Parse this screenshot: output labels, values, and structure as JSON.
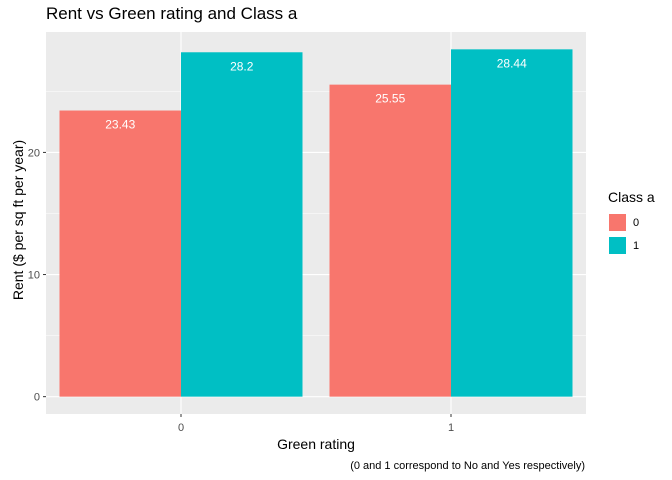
{
  "chart_data": {
    "type": "bar",
    "title": "Rent vs Green rating and Class a",
    "xlabel": "Green rating",
    "ylabel": "Rent ($ per sq ft per year)",
    "caption": "(0 and 1 correspond to No and Yes respectively)",
    "categories": [
      "0",
      "1"
    ],
    "series": [
      {
        "name": "0",
        "color": "#F8766D",
        "values": [
          23.43,
          25.55
        ],
        "labels": [
          "23.43",
          "25.55"
        ]
      },
      {
        "name": "1",
        "color": "#00BFC4",
        "values": [
          28.2,
          28.44
        ],
        "labels": [
          "28.2",
          "28.44"
        ]
      }
    ],
    "ylim": [
      -1.42,
      29.86
    ],
    "yticks": [
      0,
      10,
      20
    ],
    "ytick_labels": [
      "0",
      "10",
      "20"
    ],
    "legend": {
      "title": "Class a",
      "placement": "right"
    },
    "grid": true
  }
}
